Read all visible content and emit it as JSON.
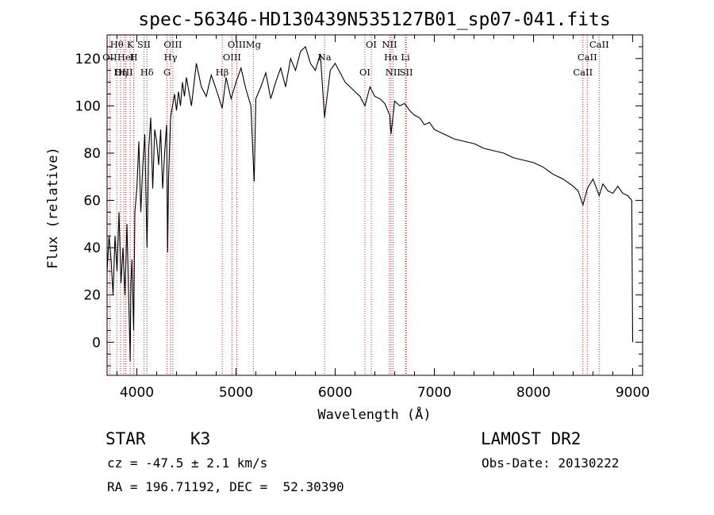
{
  "chart_data": {
    "type": "line",
    "title": "spec-56346-HD130439N535127B01_sp07-041.fits",
    "xlabel": "Wavelength (Å)",
    "ylabel": "Flux (relative)",
    "xlim": [
      3700,
      9100
    ],
    "ylim": [
      -14,
      130
    ],
    "xticks": [
      4000,
      5000,
      6000,
      7000,
      8000,
      9000
    ],
    "yticks": [
      0,
      20,
      40,
      60,
      80,
      100,
      120
    ],
    "grid": false,
    "series": [
      {
        "x": [
          3700,
          3720,
          3740,
          3760,
          3780,
          3800,
          3820,
          3840,
          3860,
          3880,
          3900,
          3920,
          3933,
          3940,
          3950,
          3968,
          3980,
          4000,
          4020,
          4040,
          4060,
          4080,
          4102,
          4120,
          4140,
          4160,
          4180,
          4200,
          4220,
          4240,
          4260,
          4280,
          4300,
          4310,
          4320,
          4340,
          4360,
          4380,
          4400,
          4420,
          4440,
          4460,
          4480,
          4500,
          4550,
          4600,
          4650,
          4700,
          4750,
          4800,
          4861,
          4900,
          4950,
          5000,
          5050,
          5100,
          5150,
          5175,
          5183,
          5200,
          5250,
          5300,
          5350,
          5400,
          5450,
          5500,
          5550,
          5600,
          5650,
          5700,
          5750,
          5800,
          5850,
          5893,
          5950,
          6000,
          6050,
          6100,
          6150,
          6200,
          6250,
          6300,
          6350,
          6400,
          6450,
          6500,
          6550,
          6563,
          6600,
          6650,
          6700,
          6750,
          6800,
          6850,
          6900,
          6950,
          7000,
          7100,
          7200,
          7300,
          7400,
          7500,
          7600,
          7700,
          7800,
          7900,
          8000,
          8100,
          8200,
          8300,
          8400,
          8450,
          8498,
          8542,
          8600,
          8662,
          8700,
          8750,
          8800,
          8850,
          8900,
          8950,
          8990,
          9000
        ],
        "y": [
          30,
          45,
          35,
          20,
          45,
          30,
          55,
          25,
          40,
          20,
          50,
          15,
          -8,
          25,
          35,
          5,
          55,
          65,
          85,
          55,
          75,
          88,
          40,
          82,
          95,
          65,
          90,
          85,
          75,
          90,
          65,
          80,
          92,
          38,
          70,
          95,
          100,
          105,
          98,
          106,
          100,
          110,
          104,
          112,
          100,
          118,
          108,
          104,
          113,
          107,
          99,
          112,
          103,
          110,
          116,
          107,
          100,
          75,
          68,
          103,
          108,
          114,
          103,
          110,
          116,
          108,
          120,
          115,
          123,
          125,
          118,
          115,
          122,
          95,
          115,
          118,
          114,
          110,
          108,
          106,
          104,
          100,
          108,
          104,
          103,
          101,
          96,
          88,
          102,
          100,
          101,
          98,
          96,
          95,
          92,
          93,
          90,
          88,
          86,
          85,
          84,
          82,
          81,
          80,
          78,
          77,
          76,
          74,
          71,
          69,
          66,
          64,
          58,
          65,
          69,
          62,
          67,
          64,
          63,
          66,
          63,
          62,
          60,
          0
        ]
      }
    ],
    "line_ids": [
      {
        "name": "Hθ",
        "x": 3798
      },
      {
        "name": "OII",
        "x": 3727
      },
      {
        "name": "OIII",
        "x": 3869
      },
      {
        "name": "K",
        "x": 3933
      },
      {
        "name": "HeI",
        "x": 3889
      },
      {
        "name": "Hη",
        "x": 3835
      },
      {
        "name": "SII",
        "x": 4072
      },
      {
        "name": "H",
        "x": 3968
      },
      {
        "name": "Hδ",
        "x": 4102
      },
      {
        "name": "OIII",
        "x": 4363
      },
      {
        "name": "Hγ",
        "x": 4340
      },
      {
        "name": "G",
        "x": 4305
      },
      {
        "name": "OIII",
        "x": 5007
      },
      {
        "name": "OIII",
        "x": 4959
      },
      {
        "name": "Hβ",
        "x": 4861
      },
      {
        "name": "Mg",
        "x": 5175
      },
      {
        "name": "Na",
        "x": 5893
      },
      {
        "name": "OI",
        "x": 6300
      },
      {
        "name": "OI",
        "x": 6364
      },
      {
        "name": "Hα",
        "x": 6563
      },
      {
        "name": "SII",
        "x": 6717
      },
      {
        "name": "NII",
        "x": 6548
      },
      {
        "name": "Li",
        "x": 6708
      },
      {
        "name": "NII",
        "x": 6583
      },
      {
        "name": "CaII",
        "x": 8662
      },
      {
        "name": "CaII",
        "x": 8542
      },
      {
        "name": "CaII",
        "x": 8498
      }
    ]
  },
  "info": {
    "object_class": "STAR",
    "subclass": "K3",
    "survey": "LAMOST DR2",
    "cz": "cz = -47.5 ± 2.1 km/s",
    "obs_date": "Obs-Date: 20130222",
    "radec": "RA = 196.71192, DEC =  52.30390"
  }
}
